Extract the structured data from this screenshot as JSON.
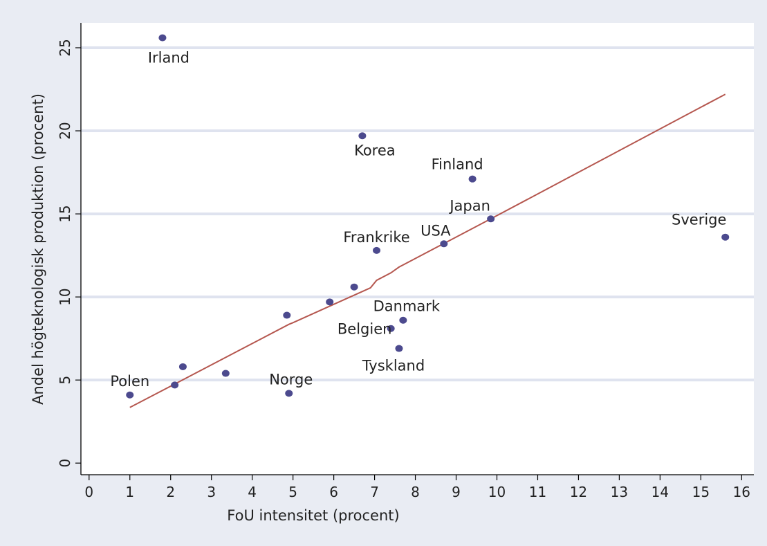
{
  "chart_data": {
    "type": "scatter",
    "title": "",
    "xlabel": "FoU intensitet (procent)",
    "ylabel": "Andel högteknologisk produktion (procent)",
    "xlim": [
      -0.2,
      16.3
    ],
    "ylim": [
      -0.7,
      26.5
    ],
    "xticks": [
      0,
      1,
      2,
      3,
      4,
      5,
      6,
      7,
      8,
      9,
      10,
      11,
      12,
      13,
      14,
      15,
      16
    ],
    "yticks": [
      0,
      5,
      10,
      15,
      20,
      25
    ],
    "grid": "horizontal",
    "legend": "none",
    "colors": {
      "point": "#4c4a8e",
      "fit": "#b5574f",
      "grid": "#dfe3ef",
      "background": "#e9ecf3",
      "plot": "#ffffff"
    },
    "points": [
      {
        "label": "Irland",
        "x": 1.8,
        "y": 25.6
      },
      {
        "label": "Korea",
        "x": 6.7,
        "y": 19.7
      },
      {
        "label": "Finland",
        "x": 9.4,
        "y": 17.1
      },
      {
        "label": "Japan",
        "x": 9.85,
        "y": 14.7
      },
      {
        "label": "Sverige",
        "x": 15.6,
        "y": 13.6
      },
      {
        "label": "USA",
        "x": 8.7,
        "y": 13.2
      },
      {
        "label": "Frankrike",
        "x": 7.05,
        "y": 12.8
      },
      {
        "label": "",
        "x": 6.5,
        "y": 10.6
      },
      {
        "label": "",
        "x": 5.9,
        "y": 9.7
      },
      {
        "label": "",
        "x": 4.85,
        "y": 8.9
      },
      {
        "label": "Danmark",
        "x": 7.7,
        "y": 8.6
      },
      {
        "label": "Belgien",
        "x": 7.4,
        "y": 8.1
      },
      {
        "label": "Tyskland",
        "x": 7.6,
        "y": 6.9
      },
      {
        "label": "",
        "x": 2.3,
        "y": 5.8
      },
      {
        "label": "",
        "x": 3.35,
        "y": 5.4
      },
      {
        "label": "",
        "x": 2.1,
        "y": 4.7
      },
      {
        "label": "Norge",
        "x": 4.9,
        "y": 4.2
      },
      {
        "label": "Polen",
        "x": 1.0,
        "y": 4.1
      }
    ],
    "fit_line": [
      {
        "x": 1.0,
        "y": 3.35
      },
      {
        "x": 4.9,
        "y": 8.35
      },
      {
        "x": 5.0,
        "y": 8.45
      },
      {
        "x": 6.9,
        "y": 10.55
      },
      {
        "x": 7.05,
        "y": 11.0
      },
      {
        "x": 7.4,
        "y": 11.45
      },
      {
        "x": 7.6,
        "y": 11.8
      },
      {
        "x": 9.85,
        "y": 14.7
      },
      {
        "x": 15.6,
        "y": 22.2
      }
    ]
  }
}
